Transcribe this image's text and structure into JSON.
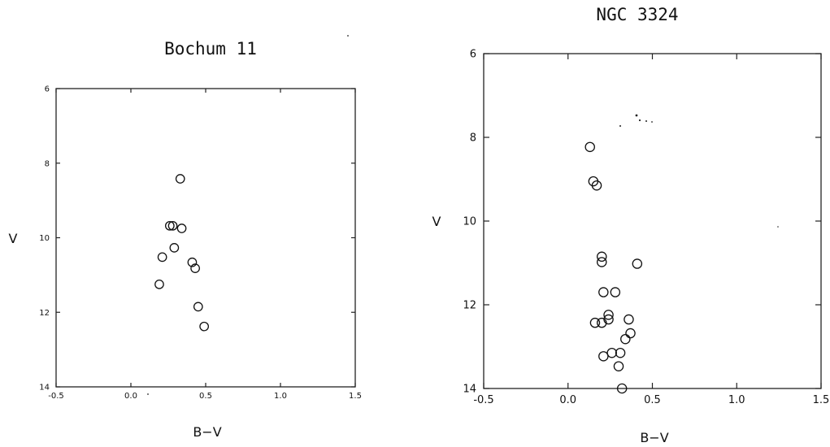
{
  "chart_data": [
    {
      "type": "scatter",
      "title": "Bochum 11",
      "xlabel": "B−V",
      "ylabel": "V",
      "xlim": [
        -0.5,
        1.5
      ],
      "ylim": [
        14,
        6
      ],
      "y_inverted": true,
      "xticks": [
        "-0.5",
        "0.0",
        "0.5",
        "1.0",
        "1.5"
      ],
      "yticks": [
        "6",
        "8",
        "10",
        "12",
        "14"
      ],
      "grid": false,
      "points": [
        {
          "x": 0.33,
          "y": 8.42
        },
        {
          "x": 0.26,
          "y": 9.68
        },
        {
          "x": 0.28,
          "y": 9.68
        },
        {
          "x": 0.34,
          "y": 9.75
        },
        {
          "x": 0.29,
          "y": 10.27
        },
        {
          "x": 0.21,
          "y": 10.52
        },
        {
          "x": 0.41,
          "y": 10.66
        },
        {
          "x": 0.43,
          "y": 10.82
        },
        {
          "x": 0.19,
          "y": 11.25
        },
        {
          "x": 0.45,
          "y": 11.85
        },
        {
          "x": 0.49,
          "y": 12.38
        }
      ]
    },
    {
      "type": "scatter",
      "title": "NGC 3324",
      "xlabel": "B−V",
      "ylabel": "V",
      "xlim": [
        -0.5,
        1.5
      ],
      "ylim": [
        14,
        6
      ],
      "y_inverted": true,
      "xticks": [
        "-0.5",
        "0.0",
        "0.5",
        "1.0",
        "1.5"
      ],
      "yticks": [
        "6",
        "8",
        "10",
        "12",
        "14"
      ],
      "grid": false,
      "points": [
        {
          "x": 0.13,
          "y": 8.23
        },
        {
          "x": 0.15,
          "y": 9.05
        },
        {
          "x": 0.17,
          "y": 9.15
        },
        {
          "x": 0.2,
          "y": 10.85
        },
        {
          "x": 0.2,
          "y": 10.98
        },
        {
          "x": 0.41,
          "y": 11.02
        },
        {
          "x": 0.21,
          "y": 11.7
        },
        {
          "x": 0.28,
          "y": 11.7
        },
        {
          "x": 0.24,
          "y": 12.24
        },
        {
          "x": 0.24,
          "y": 12.35
        },
        {
          "x": 0.16,
          "y": 12.43
        },
        {
          "x": 0.2,
          "y": 12.43
        },
        {
          "x": 0.36,
          "y": 12.35
        },
        {
          "x": 0.37,
          "y": 12.68
        },
        {
          "x": 0.34,
          "y": 12.82
        },
        {
          "x": 0.26,
          "y": 13.15
        },
        {
          "x": 0.31,
          "y": 13.15
        },
        {
          "x": 0.21,
          "y": 13.23
        },
        {
          "x": 0.3,
          "y": 13.47
        },
        {
          "x": 0.32,
          "y": 14.0
        }
      ]
    }
  ]
}
